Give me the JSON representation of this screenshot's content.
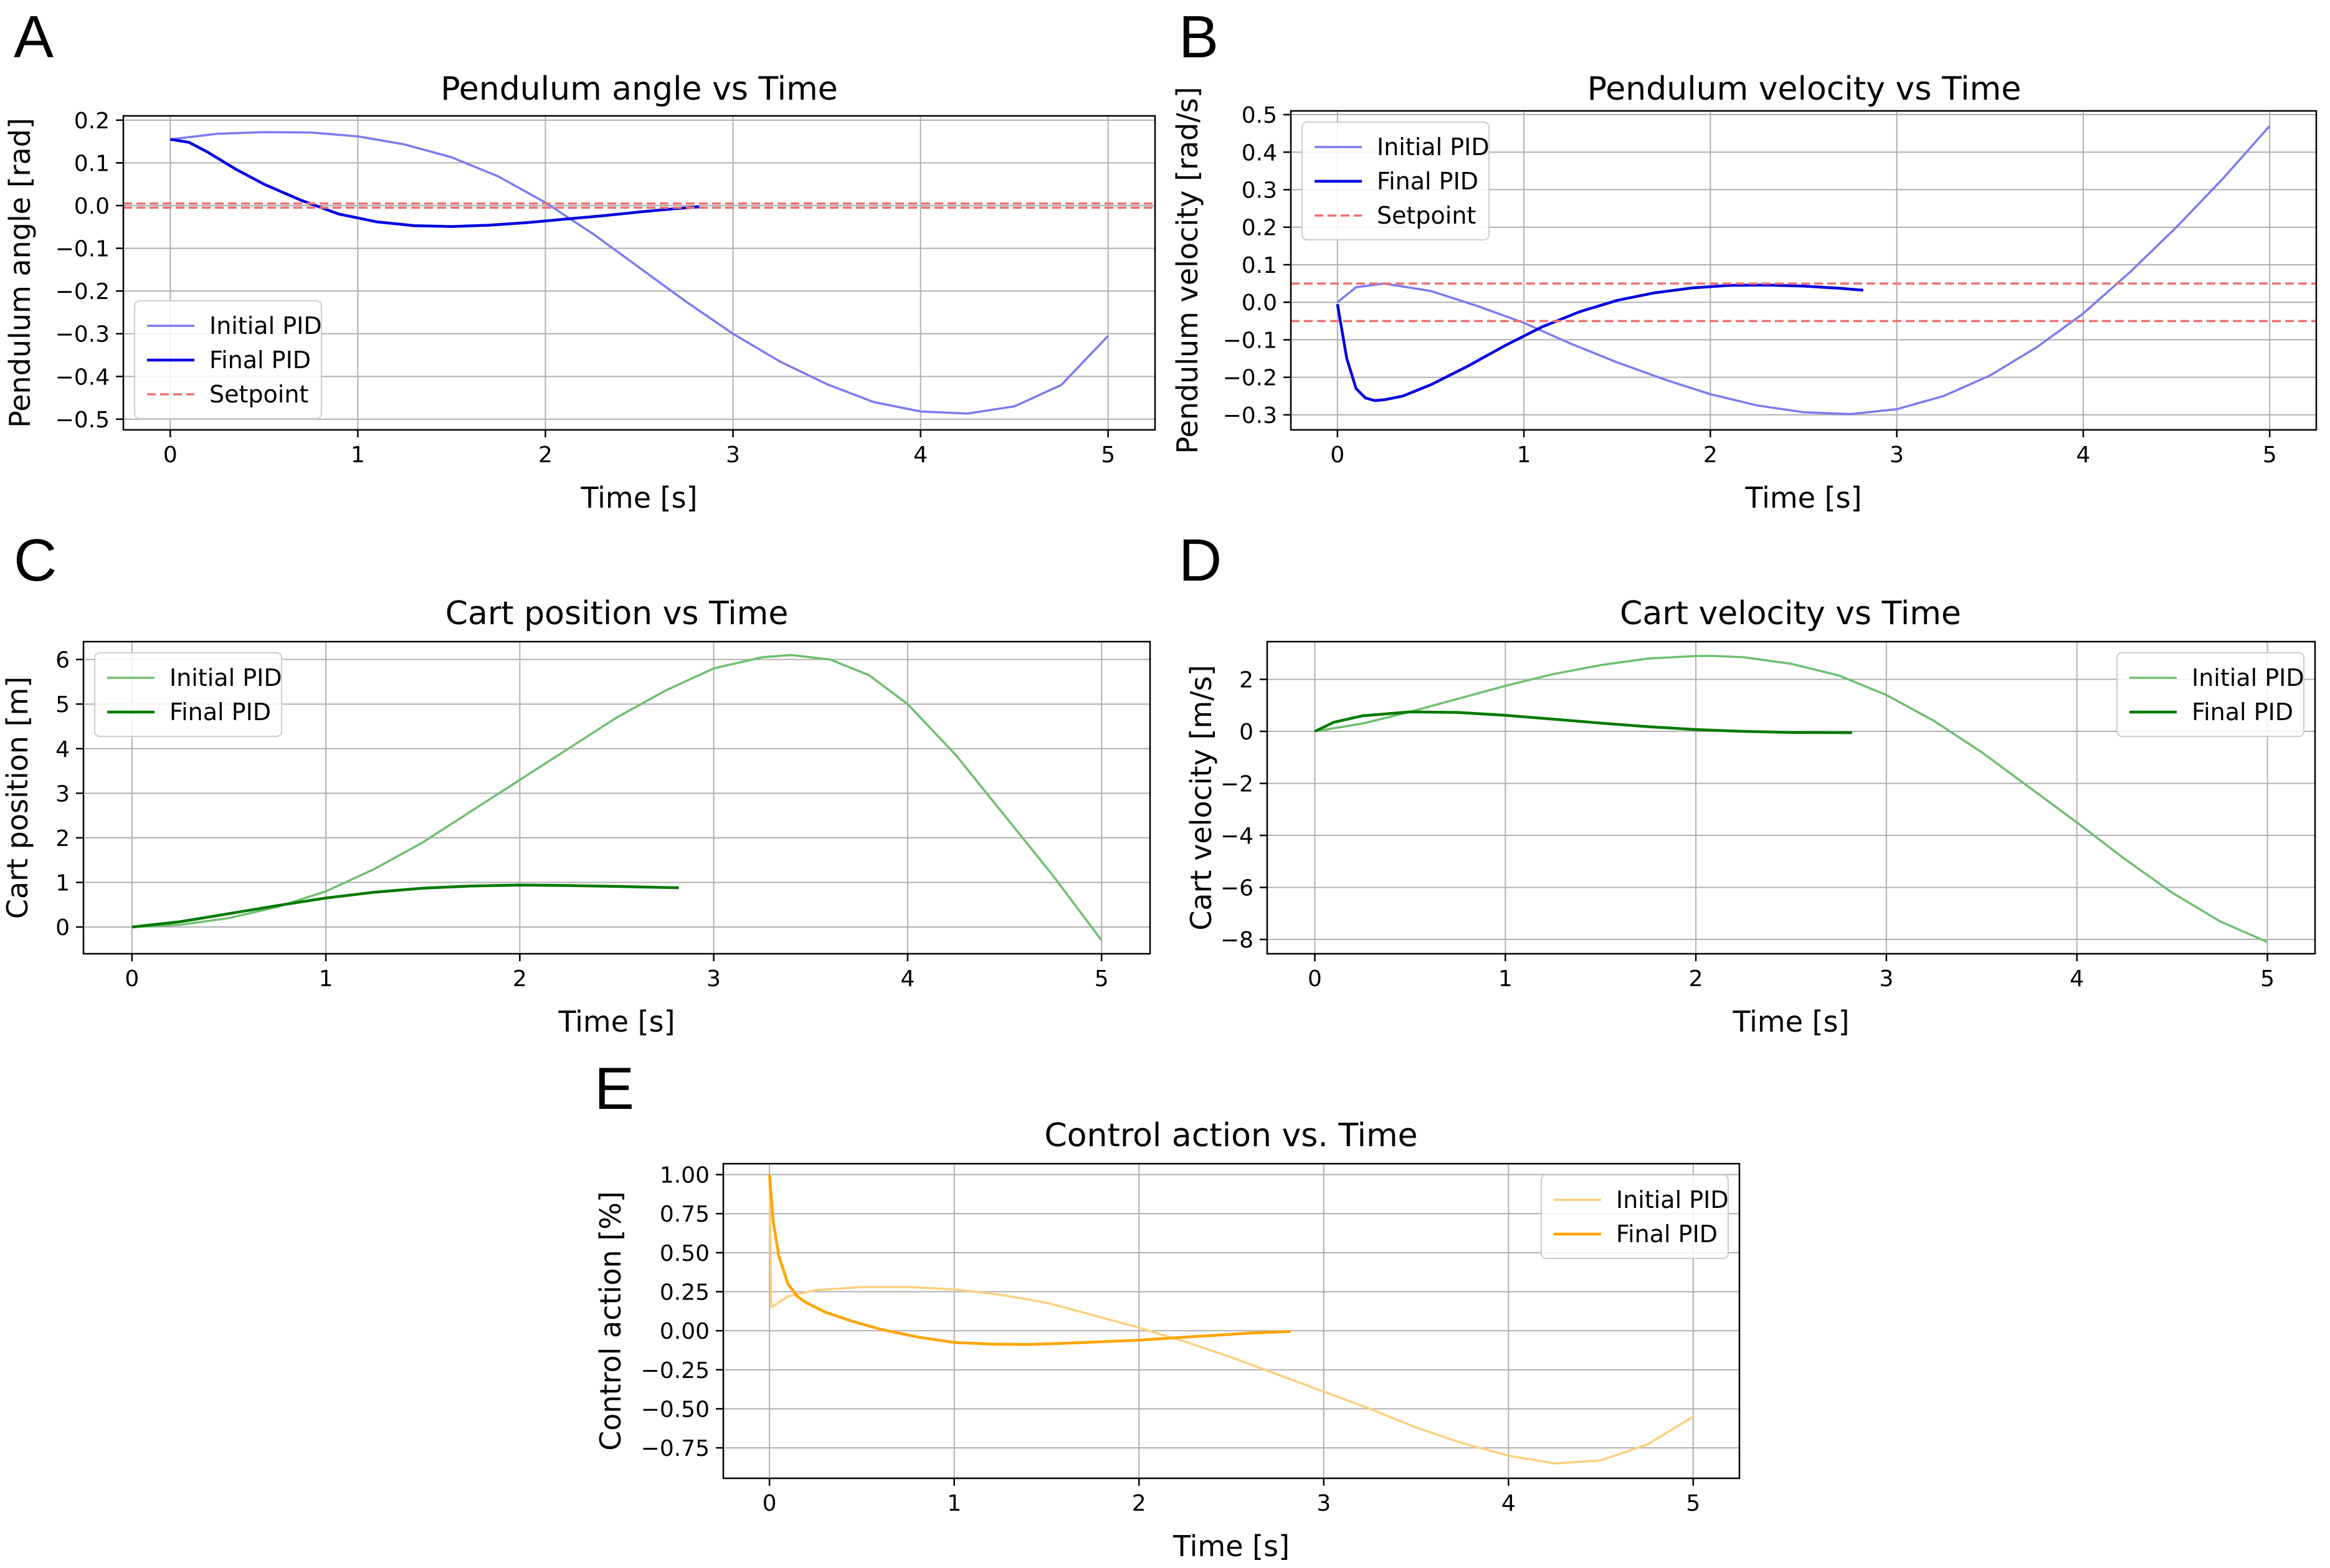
{
  "chart_data": [
    {
      "letter": "A",
      "type": "line",
      "title": "Pendulum angle vs Time",
      "xlabel": "Time [s]",
      "ylabel": "Pendulum angle [rad]",
      "xlim": [
        -0.25,
        5.25
      ],
      "ylim": [
        -0.525,
        0.21
      ],
      "xticks": [
        0,
        1,
        2,
        3,
        4,
        5
      ],
      "yticks": [
        0.2,
        0.1,
        0.0,
        -0.1,
        -0.2,
        -0.3,
        -0.4,
        -0.5
      ],
      "ytick_labels": [
        "0.2",
        "0.1",
        "0.0",
        "−0.1",
        "−0.2",
        "−0.3",
        "−0.4",
        "−0.5"
      ],
      "grid": true,
      "legend_position": "lower-left",
      "series": [
        {
          "name": "Initial PID",
          "color": "#7b7bf0",
          "style": "solid",
          "x": [
            0,
            0.25,
            0.5,
            0.75,
            1.0,
            1.25,
            1.5,
            1.75,
            2.0,
            2.25,
            2.5,
            2.75,
            3.0,
            3.25,
            3.5,
            3.75,
            4.0,
            4.25,
            4.5,
            4.75,
            5.0
          ],
          "y": [
            0.155,
            0.168,
            0.172,
            0.171,
            0.162,
            0.143,
            0.113,
            0.068,
            0.007,
            -0.065,
            -0.145,
            -0.225,
            -0.3,
            -0.365,
            -0.418,
            -0.46,
            -0.482,
            -0.487,
            -0.47,
            -0.42,
            -0.305
          ]
        },
        {
          "name": "Final PID",
          "color": "#0000e0",
          "style": "solid",
          "x": [
            0,
            0.1,
            0.2,
            0.35,
            0.5,
            0.7,
            0.9,
            1.1,
            1.3,
            1.5,
            1.7,
            1.9,
            2.1,
            2.3,
            2.5,
            2.7,
            2.82
          ],
          "y": [
            0.155,
            0.148,
            0.125,
            0.085,
            0.05,
            0.012,
            -0.02,
            -0.038,
            -0.047,
            -0.049,
            -0.046,
            -0.04,
            -0.032,
            -0.024,
            -0.015,
            -0.007,
            -0.003
          ]
        },
        {
          "name": "Setpoint",
          "color": "#f07070",
          "style": "dashed",
          "hline": [
            0.005,
            -0.005
          ]
        }
      ]
    },
    {
      "letter": "B",
      "type": "line",
      "title": "Pendulum velocity vs Time",
      "xlabel": "Time [s]",
      "ylabel": "Pendulum velocity [rad/s]",
      "xlim": [
        -0.25,
        5.25
      ],
      "ylim": [
        -0.34,
        0.51
      ],
      "xticks": [
        0,
        1,
        2,
        3,
        4,
        5
      ],
      "yticks": [
        0.5,
        0.4,
        0.3,
        0.2,
        0.1,
        0.0,
        -0.1,
        -0.2,
        -0.3
      ],
      "ytick_labels": [
        "0.5",
        "0.4",
        "0.3",
        "0.2",
        "0.1",
        "0.0",
        "−0.1",
        "−0.2",
        "−0.3"
      ],
      "grid": true,
      "legend_position": "upper-left",
      "series": [
        {
          "name": "Initial PID",
          "color": "#7b7bf0",
          "style": "solid",
          "x": [
            0,
            0.1,
            0.25,
            0.5,
            0.75,
            1.0,
            1.25,
            1.5,
            1.75,
            2.0,
            2.25,
            2.5,
            2.75,
            3.0,
            3.25,
            3.5,
            3.75,
            4.0,
            4.25,
            4.5,
            4.75,
            5.0
          ],
          "y": [
            0.0,
            0.04,
            0.05,
            0.03,
            -0.01,
            -0.055,
            -0.11,
            -0.16,
            -0.205,
            -0.245,
            -0.275,
            -0.293,
            -0.298,
            -0.285,
            -0.25,
            -0.195,
            -0.12,
            -0.03,
            0.08,
            0.2,
            0.33,
            0.47
          ]
        },
        {
          "name": "Final PID",
          "color": "#0000e0",
          "style": "solid",
          "x": [
            0,
            0.05,
            0.1,
            0.15,
            0.2,
            0.25,
            0.35,
            0.5,
            0.7,
            0.9,
            1.1,
            1.3,
            1.5,
            1.7,
            1.9,
            2.1,
            2.3,
            2.5,
            2.7,
            2.82
          ],
          "y": [
            -0.005,
            -0.15,
            -0.23,
            -0.255,
            -0.262,
            -0.26,
            -0.25,
            -0.22,
            -0.17,
            -0.115,
            -0.065,
            -0.025,
            0.005,
            0.025,
            0.038,
            0.045,
            0.046,
            0.043,
            0.037,
            0.032
          ]
        },
        {
          "name": "Setpoint",
          "color": "#f07070",
          "style": "dashed",
          "hline": [
            0.05,
            -0.05
          ]
        }
      ]
    },
    {
      "letter": "C",
      "type": "line",
      "title": "Cart position vs Time",
      "xlabel": "Time [s]",
      "ylabel": "Cart position [m]",
      "xlim": [
        -0.25,
        5.25
      ],
      "ylim": [
        -0.6,
        6.4
      ],
      "xticks": [
        0,
        1,
        2,
        3,
        4,
        5
      ],
      "yticks": [
        6,
        5,
        4,
        3,
        2,
        1,
        0
      ],
      "ytick_labels": [
        "6",
        "5",
        "4",
        "3",
        "2",
        "1",
        "0"
      ],
      "grid": true,
      "legend_position": "upper-left",
      "series": [
        {
          "name": "Initial PID",
          "color": "#6fbf6f",
          "style": "solid",
          "x": [
            0,
            0.25,
            0.5,
            0.75,
            1.0,
            1.25,
            1.5,
            1.75,
            2.0,
            2.25,
            2.5,
            2.75,
            3.0,
            3.25,
            3.4,
            3.6,
            3.8,
            4.0,
            4.25,
            4.5,
            4.75,
            5.0
          ],
          "y": [
            0.0,
            0.05,
            0.2,
            0.45,
            0.8,
            1.3,
            1.9,
            2.6,
            3.3,
            4.0,
            4.7,
            5.3,
            5.8,
            6.05,
            6.1,
            6.0,
            5.65,
            5.0,
            3.85,
            2.5,
            1.15,
            -0.3
          ]
        },
        {
          "name": "Final PID",
          "color": "#007a00",
          "style": "solid",
          "x": [
            0,
            0.25,
            0.5,
            0.75,
            1.0,
            1.25,
            1.5,
            1.75,
            2.0,
            2.25,
            2.5,
            2.82
          ],
          "y": [
            0.0,
            0.12,
            0.3,
            0.48,
            0.65,
            0.78,
            0.87,
            0.92,
            0.94,
            0.93,
            0.91,
            0.88
          ]
        }
      ]
    },
    {
      "letter": "D",
      "type": "line",
      "title": "Cart velocity vs Time",
      "xlabel": "Time [s]",
      "ylabel": "Cart velocity [m/s]",
      "xlim": [
        -0.25,
        5.25
      ],
      "ylim": [
        -8.55,
        3.45
      ],
      "xticks": [
        0,
        1,
        2,
        3,
        4,
        5
      ],
      "yticks": [
        2,
        0,
        -2,
        -4,
        -6,
        -8
      ],
      "ytick_labels": [
        "2",
        "0",
        "−2",
        "−4",
        "−6",
        "−8"
      ],
      "grid": true,
      "legend_position": "upper-right",
      "series": [
        {
          "name": "Initial PID",
          "color": "#6fbf6f",
          "style": "solid",
          "x": [
            0,
            0.25,
            0.5,
            0.75,
            1.0,
            1.25,
            1.5,
            1.75,
            2.0,
            2.1,
            2.25,
            2.5,
            2.75,
            3.0,
            3.25,
            3.5,
            3.75,
            4.0,
            4.25,
            4.5,
            4.75,
            5.0
          ],
          "y": [
            0.0,
            0.3,
            0.75,
            1.25,
            1.75,
            2.2,
            2.55,
            2.8,
            2.9,
            2.9,
            2.85,
            2.6,
            2.15,
            1.4,
            0.4,
            -0.8,
            -2.15,
            -3.5,
            -4.9,
            -6.2,
            -7.3,
            -8.1
          ]
        },
        {
          "name": "Final PID",
          "color": "#007a00",
          "style": "solid",
          "x": [
            0,
            0.1,
            0.25,
            0.5,
            0.75,
            1.0,
            1.25,
            1.5,
            1.75,
            2.0,
            2.25,
            2.5,
            2.82
          ],
          "y": [
            0.0,
            0.35,
            0.6,
            0.75,
            0.73,
            0.62,
            0.47,
            0.32,
            0.18,
            0.07,
            0.0,
            -0.04,
            -0.05
          ]
        }
      ]
    },
    {
      "letter": "E",
      "type": "line",
      "title": "Control action vs. Time",
      "xlabel": "Time [s]",
      "ylabel": "Control action [%]",
      "xlim": [
        -0.25,
        5.25
      ],
      "ylim": [
        -0.945,
        1.07
      ],
      "xticks": [
        0,
        1,
        2,
        3,
        4,
        5
      ],
      "yticks": [
        1.0,
        0.75,
        0.5,
        0.25,
        0.0,
        -0.25,
        -0.5,
        -0.75
      ],
      "ytick_labels": [
        "1.00",
        "0.75",
        "0.50",
        "0.25",
        "0.00",
        "−0.25",
        "−0.50",
        "−0.75"
      ],
      "grid": true,
      "legend_position": "upper-right",
      "series": [
        {
          "name": "Initial PID",
          "color": "#fdd080",
          "style": "solid",
          "x": [
            0,
            0.005,
            0.01,
            0.1,
            0.25,
            0.5,
            0.75,
            1.0,
            1.25,
            1.5,
            1.75,
            2.0,
            2.25,
            2.5,
            2.75,
            3.0,
            3.25,
            3.5,
            3.75,
            4.0,
            4.25,
            4.5,
            4.75,
            5.0
          ],
          "y": [
            1.0,
            0.6,
            0.15,
            0.22,
            0.26,
            0.28,
            0.28,
            0.265,
            0.23,
            0.18,
            0.1,
            0.02,
            -0.07,
            -0.17,
            -0.28,
            -0.39,
            -0.5,
            -0.62,
            -0.72,
            -0.8,
            -0.85,
            -0.83,
            -0.73,
            -0.55
          ]
        },
        {
          "name": "Final PID",
          "color": "#ffa500",
          "style": "solid",
          "x": [
            0,
            0.02,
            0.05,
            0.1,
            0.15,
            0.2,
            0.3,
            0.45,
            0.6,
            0.8,
            1.0,
            1.2,
            1.4,
            1.6,
            1.8,
            2.0,
            2.2,
            2.4,
            2.6,
            2.82
          ],
          "y": [
            1.0,
            0.7,
            0.48,
            0.3,
            0.22,
            0.18,
            0.12,
            0.06,
            0.01,
            -0.04,
            -0.075,
            -0.085,
            -0.088,
            -0.08,
            -0.07,
            -0.06,
            -0.045,
            -0.03,
            -0.015,
            -0.005
          ]
        }
      ]
    }
  ]
}
